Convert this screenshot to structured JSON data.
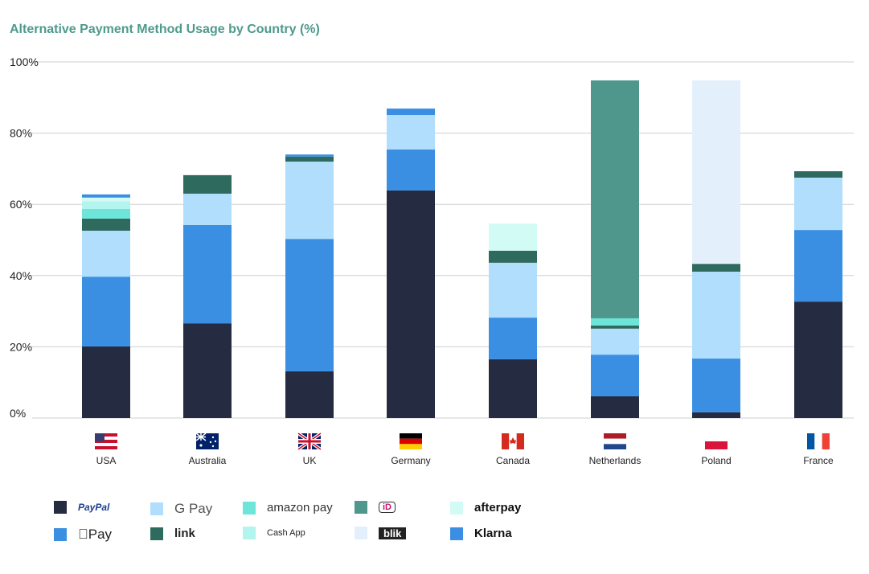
{
  "chart_data": {
    "type": "bar",
    "stacked": true,
    "title": "Alternative Payment Method Usage by Country (%)",
    "xlabel": "",
    "ylabel": "",
    "ylim": [
      0,
      100
    ],
    "yticks": [
      "0%",
      "20%",
      "40%",
      "60%",
      "80%",
      "100%"
    ],
    "grid": true,
    "legend_position": "bottom",
    "categories": [
      "USA",
      "Australia",
      "UK",
      "Germany",
      "Canada",
      "Netherlands",
      "Poland",
      "France"
    ],
    "series": [
      {
        "name": "PayPal",
        "color": "#252b40",
        "values": [
          20.1,
          26.6,
          13.1,
          63.9,
          16.5,
          6.1,
          1.6,
          32.7
        ]
      },
      {
        "name": "Apple Pay",
        "color": "#3b8fe3",
        "values": [
          19.6,
          27.6,
          37.2,
          11.5,
          11.7,
          11.7,
          15.1,
          20.1
        ]
      },
      {
        "name": "G Pay",
        "color": "#b0defc",
        "values": [
          12.9,
          8.8,
          21.7,
          9.7,
          15.4,
          7.3,
          24.4,
          14.7
        ]
      },
      {
        "name": "link",
        "color": "#2f6a5f",
        "values": [
          3.4,
          5.2,
          1.4,
          0,
          3.4,
          0.9,
          2.2,
          1.8
        ]
      },
      {
        "name": "amazon pay",
        "color": "#6de5d9",
        "values": [
          2.7,
          0,
          0,
          0,
          0,
          2.0,
          0,
          0
        ]
      },
      {
        "name": "Cash App",
        "color": "#b3f5ee",
        "values": [
          2.2,
          0,
          0,
          0,
          0,
          0,
          0,
          0
        ]
      },
      {
        "name": "afterpay",
        "color": "#d2fbf6",
        "values": [
          1.0,
          0,
          0,
          0,
          7.6,
          0,
          0,
          0
        ]
      },
      {
        "name": "Klarna",
        "color": "#3b8fe3",
        "values": [
          0.9,
          0,
          0.6,
          1.8,
          0,
          0,
          0,
          0
        ]
      },
      {
        "name": "iDEAL",
        "color": "#4f968d",
        "values": [
          0,
          0,
          0,
          0,
          0,
          66.8,
          0,
          0
        ]
      },
      {
        "name": "blik",
        "color": "#e3f0fc",
        "values": [
          0,
          0,
          0,
          0,
          0,
          0,
          51.5,
          0
        ]
      }
    ]
  },
  "legend": [
    {
      "label": "PayPal",
      "color": "#252b40",
      "style": "color:#1b3f8f;font-style:italic;font-size:12px"
    },
    {
      "label": "G Pay",
      "color": "#b0defc",
      "style": "font-weight:normal;color:#555;font-size:17px"
    },
    {
      "label": "amazon pay",
      "color": "#6de5d9",
      "style": "font-weight:normal;color:#333"
    },
    {
      "label": "iD",
      "color": "#4f968d",
      "style": "background:#fff;color:#c8116d;border:1px solid #333;border-radius:4px;padding:0 4px;font-size:11px"
    },
    {
      "label": "afterpay",
      "color": "#d2fbf6",
      "style": "color:#111"
    },
    {
      "label": "Pay",
      "color": "#3b8fe3",
      "style": "font-weight:normal;font-size:17px"
    },
    {
      "label": "link",
      "color": "#2f6a5f",
      "style": "color:#222"
    },
    {
      "label": "Cash App",
      "color": "#b3f5ee",
      "style": "font-size:11px;font-weight:normal"
    },
    {
      "label": "blik",
      "color": "#e3f0fc",
      "style": "background:#222;color:#fff;padding:0 6px;font-size:13px"
    },
    {
      "label": "Klarna",
      "color": "#3b8fe3",
      "style": "color:#111"
    }
  ]
}
